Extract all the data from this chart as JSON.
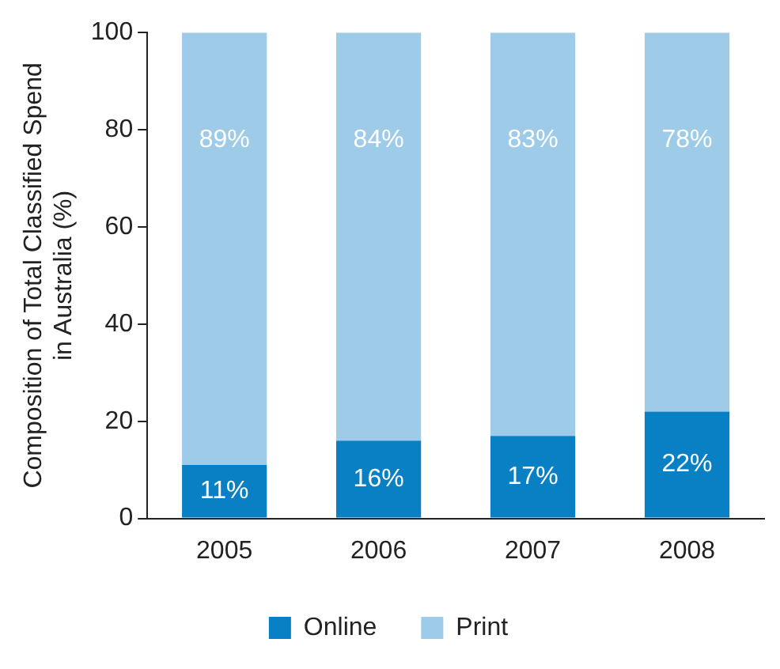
{
  "chart_data": {
    "type": "bar",
    "ylabel": "Composition of Total Classified Spend\nin Australia (%)",
    "categories": [
      "2005",
      "2006",
      "2007",
      "2008"
    ],
    "stacked": true,
    "series": [
      {
        "name": "Online",
        "color": "#0a80c4",
        "values": [
          11,
          16,
          17,
          22
        ],
        "value_labels": [
          "11%",
          "16%",
          "17%",
          "22%"
        ]
      },
      {
        "name": "Print",
        "color": "#9ecbe8",
        "values": [
          89,
          84,
          83,
          78
        ],
        "value_labels": [
          "89%",
          "84%",
          "83%",
          "78%"
        ]
      }
    ],
    "ylim": [
      0,
      100
    ],
    "yticks": [
      0,
      20,
      40,
      60,
      80,
      100
    ],
    "grid": false,
    "legend": "bottom"
  }
}
